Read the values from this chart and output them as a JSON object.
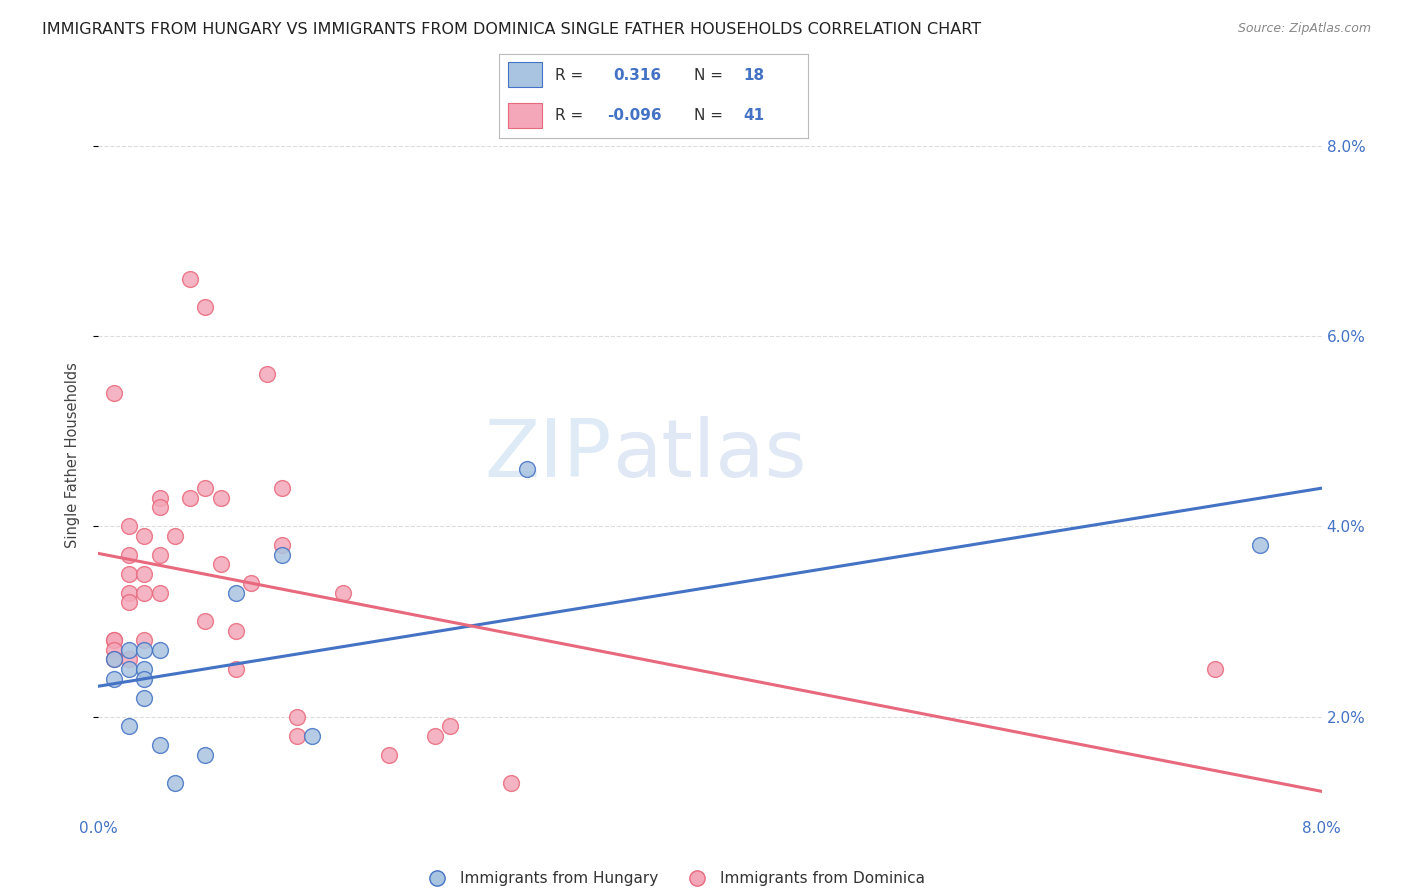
{
  "title": "IMMIGRANTS FROM HUNGARY VS IMMIGRANTS FROM DOMINICA SINGLE FATHER HOUSEHOLDS CORRELATION CHART",
  "source": "Source: ZipAtlas.com",
  "ylabel": "Single Father Households",
  "xmin": 0.0,
  "xmax": 0.08,
  "ymin": 0.01,
  "ymax": 0.085,
  "yticks": [
    0.02,
    0.04,
    0.06,
    0.08
  ],
  "ytick_labels": [
    "2.0%",
    "4.0%",
    "6.0%",
    "8.0%"
  ],
  "xticks": [
    0.0,
    0.01,
    0.02,
    0.03,
    0.04,
    0.05,
    0.06,
    0.07,
    0.08
  ],
  "legend_r_hungary": "0.316",
  "legend_n_hungary": "18",
  "legend_r_dominica": "-0.096",
  "legend_n_dominica": "41",
  "color_hungary": "#a8c4e0",
  "color_dominica": "#f4a7b9",
  "line_color_hungary": "#4472c4",
  "line_color_dominica": "#e8697d",
  "watermark_zip": "ZIP",
  "watermark_atlas": "atlas",
  "hungary_x": [
    0.001,
    0.001,
    0.002,
    0.002,
    0.002,
    0.003,
    0.003,
    0.003,
    0.003,
    0.004,
    0.004,
    0.005,
    0.007,
    0.009,
    0.012,
    0.014,
    0.028,
    0.076
  ],
  "hungary_y": [
    0.026,
    0.024,
    0.025,
    0.027,
    0.019,
    0.027,
    0.025,
    0.024,
    0.022,
    0.027,
    0.017,
    0.013,
    0.016,
    0.033,
    0.037,
    0.018,
    0.046,
    0.038
  ],
  "dominica_x": [
    0.001,
    0.001,
    0.001,
    0.001,
    0.001,
    0.002,
    0.002,
    0.002,
    0.002,
    0.002,
    0.002,
    0.003,
    0.003,
    0.003,
    0.003,
    0.004,
    0.004,
    0.004,
    0.004,
    0.005,
    0.006,
    0.006,
    0.007,
    0.007,
    0.007,
    0.008,
    0.008,
    0.009,
    0.009,
    0.01,
    0.011,
    0.012,
    0.012,
    0.013,
    0.013,
    0.016,
    0.019,
    0.022,
    0.023,
    0.027,
    0.073
  ],
  "dominica_y": [
    0.028,
    0.028,
    0.027,
    0.026,
    0.054,
    0.04,
    0.037,
    0.035,
    0.033,
    0.032,
    0.026,
    0.039,
    0.035,
    0.033,
    0.028,
    0.043,
    0.042,
    0.037,
    0.033,
    0.039,
    0.043,
    0.066,
    0.044,
    0.03,
    0.063,
    0.043,
    0.036,
    0.029,
    0.025,
    0.034,
    0.056,
    0.038,
    0.044,
    0.02,
    0.018,
    0.033,
    0.016,
    0.018,
    0.019,
    0.013,
    0.025
  ],
  "title_fontsize": 11.5,
  "source_fontsize": 9,
  "tick_fontsize": 11
}
